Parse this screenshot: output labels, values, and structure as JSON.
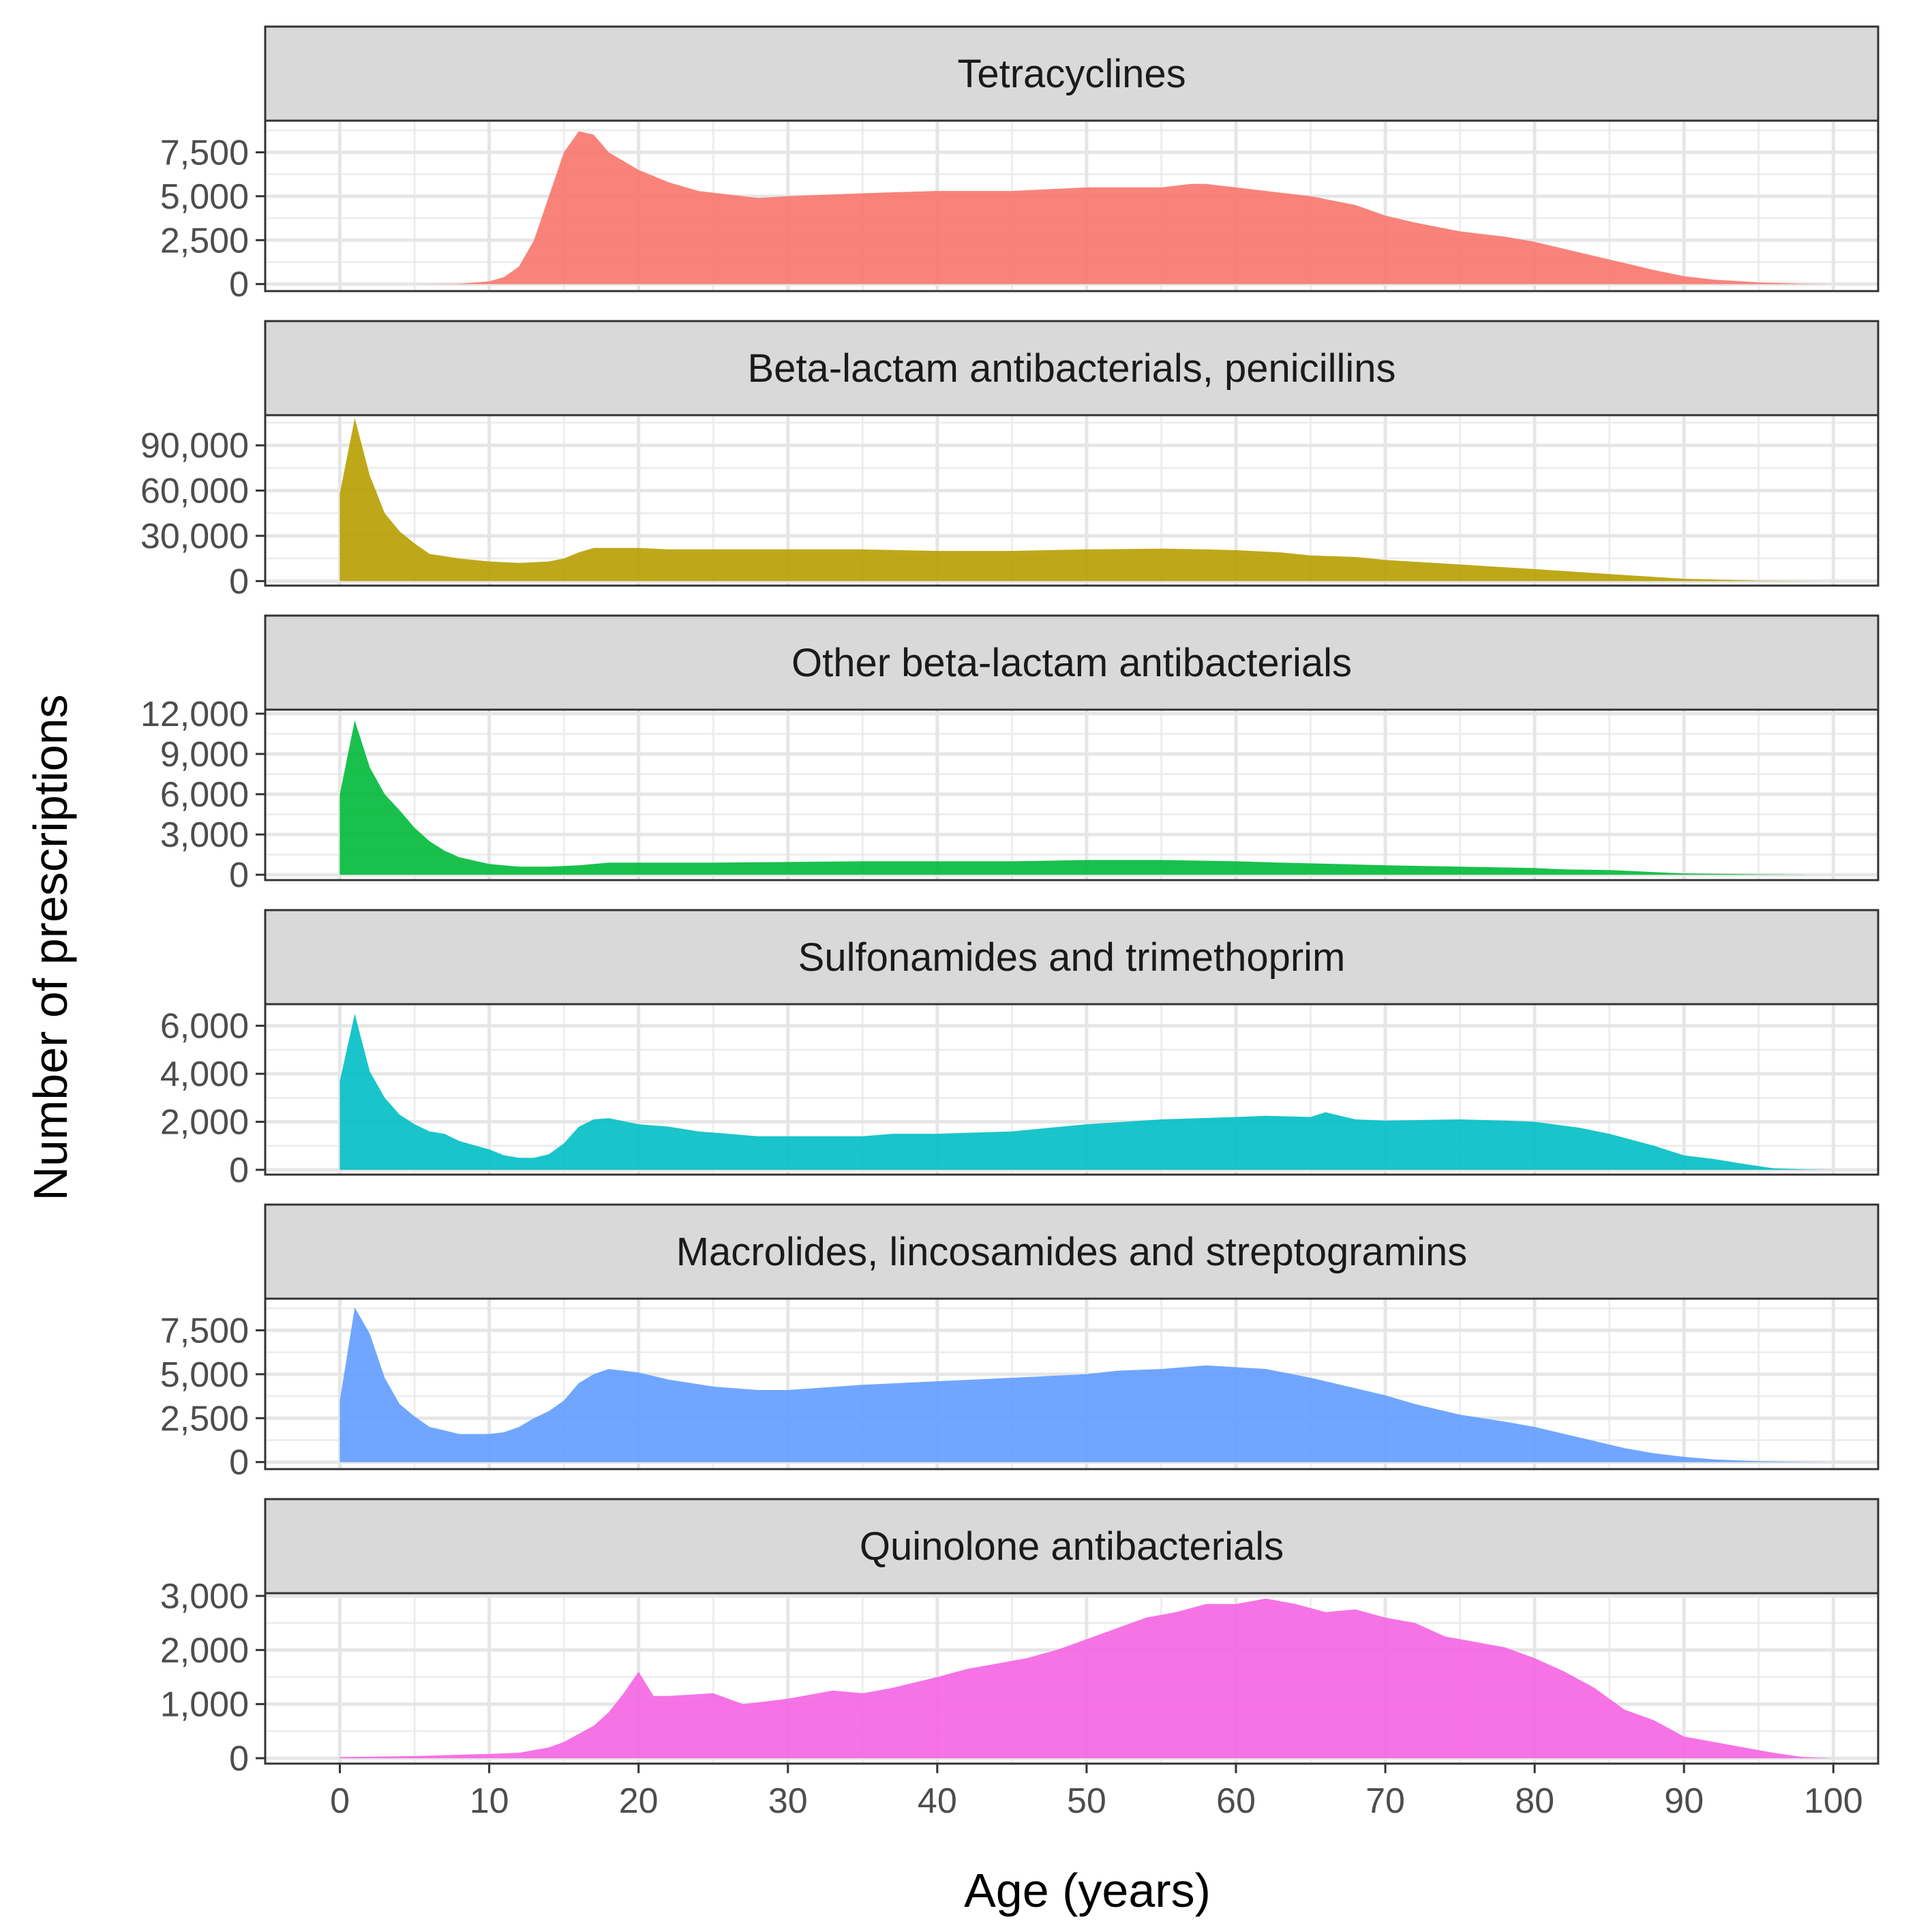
{
  "chart_data": {
    "type": "area",
    "layout": "facet-vertical",
    "xlabel": "Age (years)",
    "ylabel": "Number of prescriptions",
    "xlim": [
      -5,
      103
    ],
    "x_ticks": [
      0,
      10,
      20,
      30,
      40,
      50,
      60,
      70,
      80,
      90,
      100
    ],
    "x_tick_labels": [
      "0",
      "10",
      "20",
      "30",
      "40",
      "50",
      "60",
      "70",
      "80",
      "90",
      "100"
    ],
    "grid": true,
    "legend": "none",
    "panels": [
      {
        "name": "Tetracyclines",
        "color": "#F8766D",
        "ylim": [
          -400,
          9300
        ],
        "y_ticks": [
          0,
          2500,
          5000,
          7500
        ],
        "y_tick_labels": [
          "0",
          "2,500",
          "5,000",
          "7,500"
        ],
        "points": [
          [
            0,
            0
          ],
          [
            5,
            0
          ],
          [
            8,
            20
          ],
          [
            10,
            150
          ],
          [
            11,
            400
          ],
          [
            12,
            1000
          ],
          [
            13,
            2500
          ],
          [
            14,
            5000
          ],
          [
            15,
            7500
          ],
          [
            16,
            8700
          ],
          [
            17,
            8500
          ],
          [
            18,
            7500
          ],
          [
            19,
            7000
          ],
          [
            20,
            6500
          ],
          [
            22,
            5800
          ],
          [
            24,
            5300
          ],
          [
            26,
            5100
          ],
          [
            28,
            4900
          ],
          [
            30,
            5000
          ],
          [
            33,
            5100
          ],
          [
            36,
            5200
          ],
          [
            40,
            5300
          ],
          [
            45,
            5300
          ],
          [
            50,
            5500
          ],
          [
            55,
            5500
          ],
          [
            57,
            5700
          ],
          [
            58,
            5700
          ],
          [
            60,
            5500
          ],
          [
            62,
            5300
          ],
          [
            65,
            5000
          ],
          [
            68,
            4500
          ],
          [
            70,
            3900
          ],
          [
            72,
            3500
          ],
          [
            75,
            3000
          ],
          [
            78,
            2700
          ],
          [
            80,
            2400
          ],
          [
            82,
            2000
          ],
          [
            84,
            1600
          ],
          [
            86,
            1200
          ],
          [
            88,
            800
          ],
          [
            90,
            450
          ],
          [
            92,
            250
          ],
          [
            95,
            100
          ],
          [
            98,
            20
          ],
          [
            100,
            0
          ]
        ]
      },
      {
        "name": "Beta-lactam antibacterials, penicillins",
        "color": "#B79F00",
        "ylim": [
          -3000,
          110000
        ],
        "y_ticks": [
          0,
          30000,
          60000,
          90000
        ],
        "y_tick_labels": [
          "0",
          "30,000",
          "60,000",
          "90,000"
        ],
        "points": [
          [
            0,
            58000
          ],
          [
            1,
            108000
          ],
          [
            2,
            70000
          ],
          [
            3,
            45000
          ],
          [
            4,
            33000
          ],
          [
            5,
            25000
          ],
          [
            6,
            18000
          ],
          [
            8,
            15000
          ],
          [
            10,
            13000
          ],
          [
            12,
            12000
          ],
          [
            14,
            13000
          ],
          [
            15,
            15000
          ],
          [
            16,
            19000
          ],
          [
            17,
            22000
          ],
          [
            20,
            22000
          ],
          [
            22,
            21000
          ],
          [
            30,
            21000
          ],
          [
            35,
            21000
          ],
          [
            40,
            20000
          ],
          [
            45,
            20000
          ],
          [
            50,
            21000
          ],
          [
            55,
            21500
          ],
          [
            58,
            21000
          ],
          [
            60,
            20500
          ],
          [
            63,
            19000
          ],
          [
            65,
            17000
          ],
          [
            68,
            16000
          ],
          [
            70,
            14000
          ],
          [
            75,
            11000
          ],
          [
            80,
            8000
          ],
          [
            83,
            6000
          ],
          [
            86,
            4000
          ],
          [
            90,
            1500
          ],
          [
            95,
            300
          ],
          [
            98,
            50
          ],
          [
            100,
            0
          ]
        ]
      },
      {
        "name": "Other beta-lactam antibacterials",
        "color": "#00BA38",
        "ylim": [
          -400,
          12300
        ],
        "y_ticks": [
          0,
          3000,
          6000,
          9000,
          12000
        ],
        "y_tick_labels": [
          "0",
          "3,000",
          "6,000",
          "9,000",
          "12,000"
        ],
        "points": [
          [
            0,
            6000
          ],
          [
            1,
            11500
          ],
          [
            2,
            8000
          ],
          [
            3,
            6000
          ],
          [
            4,
            4800
          ],
          [
            5,
            3500
          ],
          [
            6,
            2500
          ],
          [
            7,
            1800
          ],
          [
            8,
            1300
          ],
          [
            10,
            800
          ],
          [
            12,
            600
          ],
          [
            14,
            600
          ],
          [
            16,
            700
          ],
          [
            18,
            900
          ],
          [
            20,
            900
          ],
          [
            25,
            900
          ],
          [
            30,
            950
          ],
          [
            35,
            1000
          ],
          [
            40,
            1000
          ],
          [
            45,
            1000
          ],
          [
            50,
            1100
          ],
          [
            55,
            1100
          ],
          [
            60,
            1000
          ],
          [
            63,
            900
          ],
          [
            65,
            850
          ],
          [
            70,
            700
          ],
          [
            75,
            600
          ],
          [
            80,
            500
          ],
          [
            82,
            400
          ],
          [
            85,
            350
          ],
          [
            88,
            200
          ],
          [
            90,
            100
          ],
          [
            95,
            30
          ],
          [
            98,
            5
          ]
        ]
      },
      {
        "name": "Sulfonamides and trimethoprim",
        "color": "#00BFC4",
        "ylim": [
          -200,
          6900
        ],
        "y_ticks": [
          0,
          2000,
          4000,
          6000
        ],
        "y_tick_labels": [
          "0",
          "2,000",
          "4,000",
          "6,000"
        ],
        "points": [
          [
            0,
            3700
          ],
          [
            1,
            6500
          ],
          [
            2,
            4100
          ],
          [
            3,
            3000
          ],
          [
            4,
            2300
          ],
          [
            5,
            1900
          ],
          [
            6,
            1600
          ],
          [
            7,
            1500
          ],
          [
            8,
            1200
          ],
          [
            10,
            850
          ],
          [
            11,
            600
          ],
          [
            12,
            500
          ],
          [
            13,
            500
          ],
          [
            14,
            650
          ],
          [
            15,
            1100
          ],
          [
            16,
            1800
          ],
          [
            17,
            2100
          ],
          [
            18,
            2150
          ],
          [
            20,
            1900
          ],
          [
            22,
            1800
          ],
          [
            24,
            1600
          ],
          [
            26,
            1500
          ],
          [
            28,
            1400
          ],
          [
            30,
            1400
          ],
          [
            35,
            1400
          ],
          [
            37,
            1500
          ],
          [
            40,
            1500
          ],
          [
            45,
            1600
          ],
          [
            50,
            1900
          ],
          [
            55,
            2100
          ],
          [
            60,
            2200
          ],
          [
            62,
            2250
          ],
          [
            65,
            2200
          ],
          [
            66,
            2400
          ],
          [
            68,
            2100
          ],
          [
            70,
            2050
          ],
          [
            75,
            2100
          ],
          [
            78,
            2050
          ],
          [
            80,
            2000
          ],
          [
            83,
            1750
          ],
          [
            85,
            1500
          ],
          [
            88,
            1000
          ],
          [
            90,
            600
          ],
          [
            92,
            450
          ],
          [
            94,
            250
          ],
          [
            96,
            60
          ],
          [
            98,
            20
          ],
          [
            100,
            0
          ]
        ]
      },
      {
        "name": "Macrolides, lincosamides and streptogramins",
        "color": "#619CFF",
        "ylim": [
          -400,
          9300
        ],
        "y_ticks": [
          0,
          2500,
          5000,
          7500
        ],
        "y_tick_labels": [
          "0",
          "2,500",
          "5,000",
          "7,500"
        ],
        "points": [
          [
            0,
            3500
          ],
          [
            1,
            8800
          ],
          [
            2,
            7300
          ],
          [
            3,
            4800
          ],
          [
            4,
            3300
          ],
          [
            5,
            2600
          ],
          [
            6,
            2000
          ],
          [
            7,
            1800
          ],
          [
            8,
            1600
          ],
          [
            10,
            1600
          ],
          [
            11,
            1700
          ],
          [
            12,
            2000
          ],
          [
            13,
            2500
          ],
          [
            14,
            2900
          ],
          [
            15,
            3500
          ],
          [
            16,
            4500
          ],
          [
            17,
            5000
          ],
          [
            18,
            5300
          ],
          [
            20,
            5100
          ],
          [
            22,
            4700
          ],
          [
            25,
            4300
          ],
          [
            28,
            4100
          ],
          [
            30,
            4100
          ],
          [
            35,
            4400
          ],
          [
            40,
            4600
          ],
          [
            45,
            4800
          ],
          [
            50,
            5000
          ],
          [
            52,
            5200
          ],
          [
            55,
            5300
          ],
          [
            58,
            5500
          ],
          [
            60,
            5400
          ],
          [
            62,
            5300
          ],
          [
            65,
            4800
          ],
          [
            68,
            4200
          ],
          [
            70,
            3800
          ],
          [
            72,
            3300
          ],
          [
            75,
            2700
          ],
          [
            78,
            2300
          ],
          [
            80,
            2000
          ],
          [
            82,
            1600
          ],
          [
            84,
            1200
          ],
          [
            86,
            800
          ],
          [
            88,
            500
          ],
          [
            90,
            300
          ],
          [
            92,
            150
          ],
          [
            95,
            50
          ],
          [
            98,
            10
          ],
          [
            100,
            0
          ]
        ]
      },
      {
        "name": "Quinolone antibacterials",
        "color": "#F564E3",
        "ylim": [
          -100,
          3050
        ],
        "y_ticks": [
          0,
          1000,
          2000,
          3000
        ],
        "y_tick_labels": [
          "0",
          "1,000",
          "2,000",
          "3,000"
        ],
        "points": [
          [
            0,
            20
          ],
          [
            5,
            40
          ],
          [
            10,
            80
          ],
          [
            12,
            100
          ],
          [
            14,
            200
          ],
          [
            15,
            300
          ],
          [
            16,
            450
          ],
          [
            17,
            600
          ],
          [
            18,
            850
          ],
          [
            19,
            1200
          ],
          [
            20,
            1600
          ],
          [
            21,
            1150
          ],
          [
            22,
            1150
          ],
          [
            25,
            1200
          ],
          [
            27,
            1000
          ],
          [
            30,
            1100
          ],
          [
            33,
            1250
          ],
          [
            35,
            1200
          ],
          [
            37,
            1300
          ],
          [
            40,
            1500
          ],
          [
            42,
            1650
          ],
          [
            44,
            1750
          ],
          [
            46,
            1850
          ],
          [
            48,
            2000
          ],
          [
            50,
            2200
          ],
          [
            52,
            2400
          ],
          [
            54,
            2600
          ],
          [
            56,
            2700
          ],
          [
            58,
            2850
          ],
          [
            60,
            2850
          ],
          [
            62,
            2950
          ],
          [
            64,
            2850
          ],
          [
            66,
            2700
          ],
          [
            68,
            2750
          ],
          [
            70,
            2600
          ],
          [
            72,
            2500
          ],
          [
            74,
            2250
          ],
          [
            76,
            2150
          ],
          [
            78,
            2050
          ],
          [
            80,
            1850
          ],
          [
            82,
            1600
          ],
          [
            84,
            1300
          ],
          [
            86,
            900
          ],
          [
            88,
            700
          ],
          [
            90,
            400
          ],
          [
            92,
            300
          ],
          [
            94,
            200
          ],
          [
            96,
            100
          ],
          [
            98,
            20
          ],
          [
            100,
            0
          ]
        ]
      }
    ]
  }
}
